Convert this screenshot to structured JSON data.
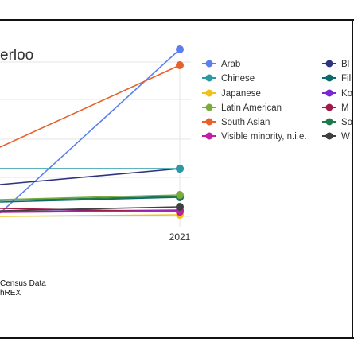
{
  "chart_data": {
    "type": "line",
    "title": "erloo",
    "x": [
      "2021"
    ],
    "xlabel": "",
    "ylabel": "",
    "grid": true,
    "legend_position": "right",
    "series": [
      {
        "name": "Arab",
        "color": "#5b7ff0",
        "end": 62
      },
      {
        "name": "Chinese",
        "color": "#2a9aa5",
        "end": 212
      },
      {
        "name": "Japanese",
        "color": "#f2c21b",
        "end": 270
      },
      {
        "name": "Latin American",
        "color": "#7aab3c",
        "end": 245
      },
      {
        "name": "South Asian",
        "color": "#e8602c",
        "end": 82
      },
      {
        "name": "Visible minority, n.i.e.",
        "color": "#c020a8",
        "end": 265
      },
      {
        "name": "Bl",
        "color": "#2e3280",
        "end": 212
      },
      {
        "name": "Fil",
        "color": "#0f6b6b",
        "end": 248
      },
      {
        "name": "Ko",
        "color": "#7a28d0",
        "end": 264
      },
      {
        "name": "M",
        "color": "#a01a4a",
        "end": 266
      },
      {
        "name": "So",
        "color": "#1e7a4e",
        "end": 247
      },
      {
        "name": "W",
        "color": "#404040",
        "end": 260
      }
    ],
    "source_lines": [
      "Census Data",
      "hREX"
    ]
  }
}
